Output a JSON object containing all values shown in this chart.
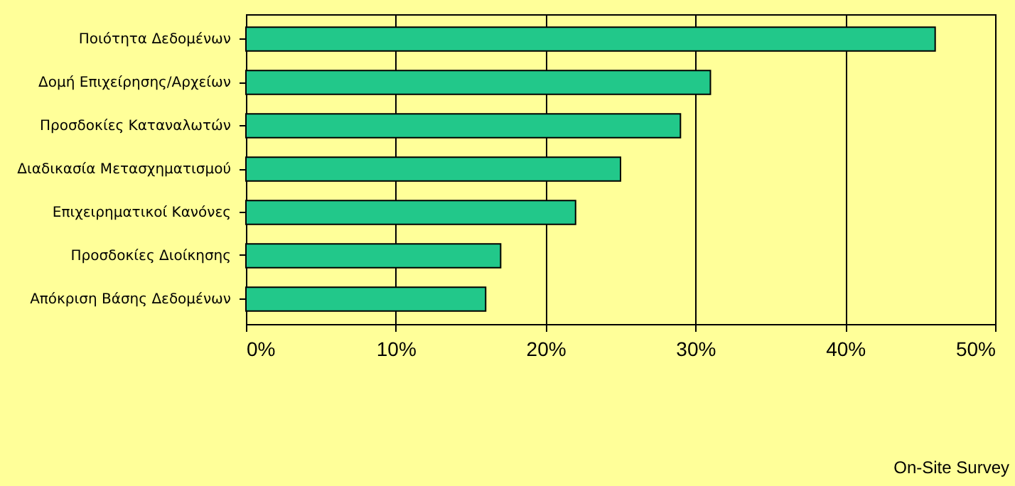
{
  "chart_data": {
    "type": "bar",
    "orientation": "horizontal",
    "categories": [
      "Ποιότητα Δεδομένων",
      "Δομή Επιχείρησης/Αρχείων",
      "Προσδοκίες Καταναλωτών",
      "Διαδικασία Μετασχηματισμού",
      "Επιχειρηματικοί Κανόνες",
      "Προσδοκίες Διοίκησης",
      "Απόκριση Βάσης Δεδομένων"
    ],
    "values": [
      46,
      31,
      29,
      25,
      22,
      17,
      16
    ],
    "color": "#22c88a",
    "xlim": [
      0,
      50
    ],
    "xticks": [
      {
        "value": 0,
        "label": "0%"
      },
      {
        "value": 10,
        "label": "10%"
      },
      {
        "value": 20,
        "label": "20%"
      },
      {
        "value": 30,
        "label": "30%"
      },
      {
        "value": 40,
        "label": "40%"
      },
      {
        "value": 50,
        "label": "50%"
      }
    ],
    "grid": "x",
    "annotations": [
      "On-Site Survey"
    ]
  }
}
